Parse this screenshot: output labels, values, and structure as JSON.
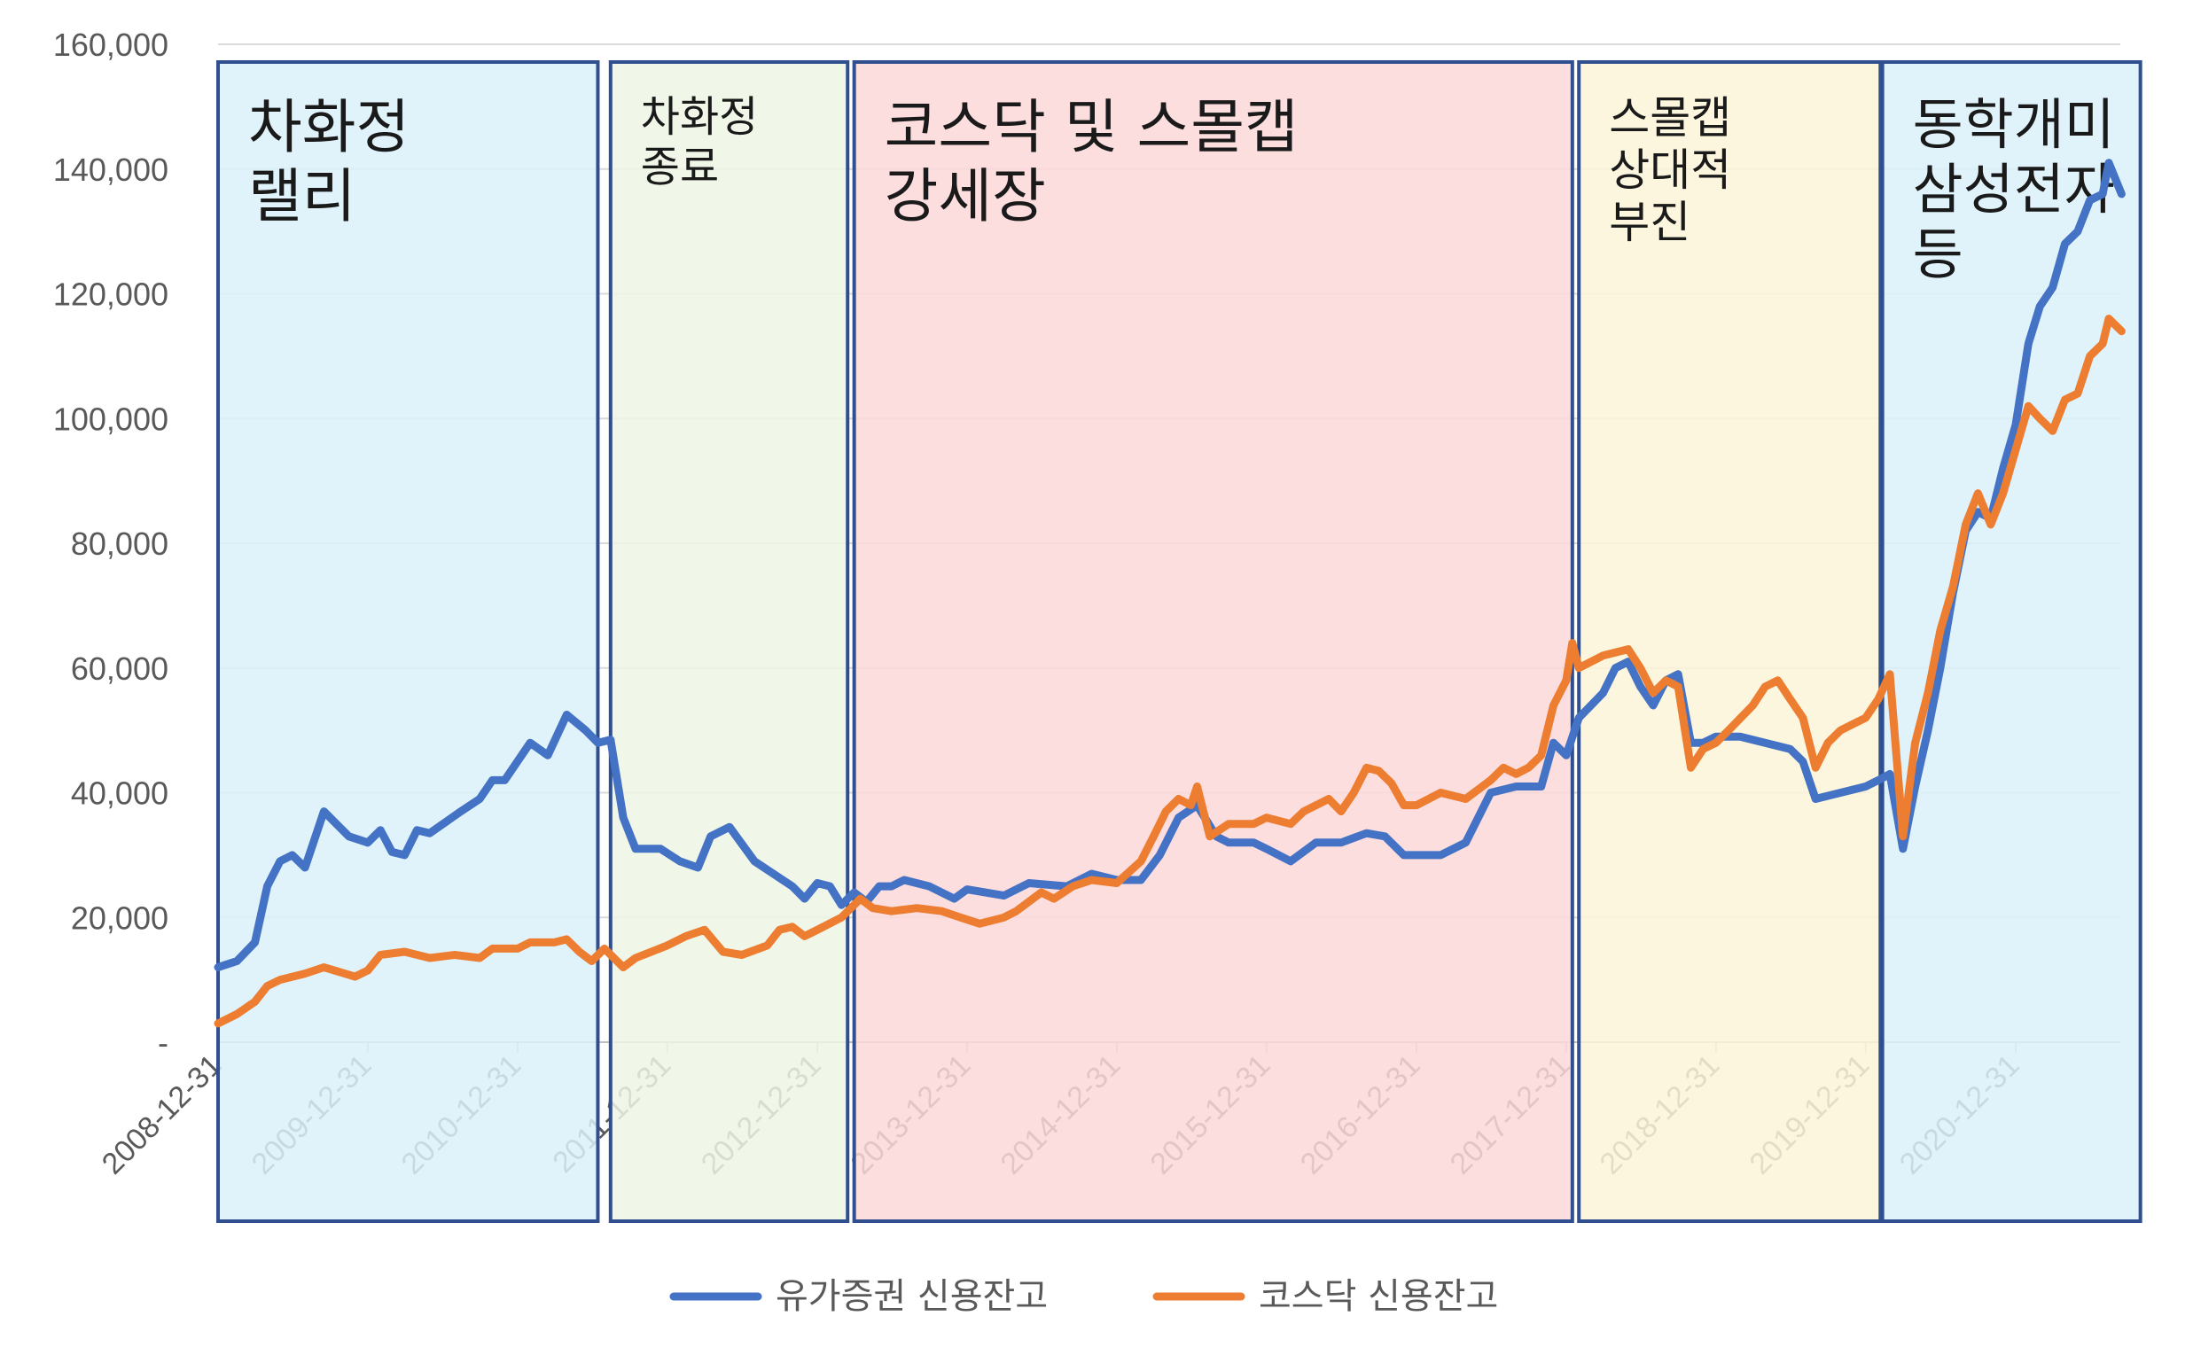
{
  "chart_data": {
    "type": "line",
    "title": "",
    "xlabel": "",
    "ylabel": "",
    "ylim": [
      0,
      160000
    ],
    "yticks": [
      {
        "value": 0,
        "label": "-"
      },
      {
        "value": 20000,
        "label": "20,000"
      },
      {
        "value": 40000,
        "label": "40,000"
      },
      {
        "value": 60000,
        "label": "60,000"
      },
      {
        "value": 80000,
        "label": "80,000"
      },
      {
        "value": 100000,
        "label": "100,000"
      },
      {
        "value": 120000,
        "label": "120,000"
      },
      {
        "value": 140000,
        "label": "140,000"
      },
      {
        "value": 160000,
        "label": "160,000"
      }
    ],
    "xlim": [
      "2008-12-31",
      "2021-09-30"
    ],
    "xticks": [
      "2008-12-31",
      "2009-12-31",
      "2010-12-31",
      "2011-12-31",
      "2012-12-31",
      "2013-12-31",
      "2014-12-31",
      "2015-12-31",
      "2016-12-31",
      "2017-12-31",
      "2018-12-31",
      "2019-12-31",
      "2020-12-31"
    ],
    "grid": true,
    "legend_position": "bottom",
    "series": [
      {
        "name": "유가증권 신용잔고",
        "color": "#4472C4",
        "points": [
          [
            "2008-12-31",
            12000
          ],
          [
            "2009-02-15",
            13000
          ],
          [
            "2009-03-31",
            16000
          ],
          [
            "2009-04-30",
            25000
          ],
          [
            "2009-05-31",
            29000
          ],
          [
            "2009-06-30",
            30000
          ],
          [
            "2009-07-31",
            28000
          ],
          [
            "2009-09-15",
            37000
          ],
          [
            "2009-11-15",
            33000
          ],
          [
            "2009-12-31",
            32000
          ],
          [
            "2010-01-31",
            34000
          ],
          [
            "2010-02-28",
            30500
          ],
          [
            "2010-03-31",
            30000
          ],
          [
            "2010-04-30",
            34000
          ],
          [
            "2010-05-31",
            33500
          ],
          [
            "2010-08-15",
            37000
          ],
          [
            "2010-09-30",
            39000
          ],
          [
            "2010-10-31",
            42000
          ],
          [
            "2010-11-30",
            42000
          ],
          [
            "2011-01-31",
            48000
          ],
          [
            "2011-03-15",
            46000
          ],
          [
            "2011-04-30",
            52500
          ],
          [
            "2011-06-15",
            50000
          ],
          [
            "2011-07-15",
            48000
          ],
          [
            "2011-08-15",
            48500
          ],
          [
            "2011-09-15",
            36000
          ],
          [
            "2011-10-15",
            31000
          ],
          [
            "2011-12-15",
            31000
          ],
          [
            "2012-01-31",
            29000
          ],
          [
            "2012-03-15",
            28000
          ],
          [
            "2012-04-15",
            33000
          ],
          [
            "2012-05-31",
            34500
          ],
          [
            "2012-07-31",
            29000
          ],
          [
            "2012-10-31",
            25000
          ],
          [
            "2012-11-30",
            23000
          ],
          [
            "2012-12-31",
            25500
          ],
          [
            "2013-01-31",
            25000
          ],
          [
            "2013-02-28",
            22000
          ],
          [
            "2013-03-31",
            24000
          ],
          [
            "2013-04-30",
            22500
          ],
          [
            "2013-05-31",
            25000
          ],
          [
            "2013-06-30",
            25000
          ],
          [
            "2013-07-31",
            26000
          ],
          [
            "2013-09-30",
            25000
          ],
          [
            "2013-11-30",
            23000
          ],
          [
            "2013-12-31",
            24500
          ],
          [
            "2014-03-31",
            23500
          ],
          [
            "2014-05-31",
            25500
          ],
          [
            "2014-08-31",
            25000
          ],
          [
            "2014-10-31",
            27000
          ],
          [
            "2014-12-31",
            26000
          ],
          [
            "2015-02-28",
            26000
          ],
          [
            "2015-04-15",
            30000
          ],
          [
            "2015-05-31",
            36000
          ],
          [
            "2015-07-15",
            38000
          ],
          [
            "2015-08-31",
            33000
          ],
          [
            "2015-09-30",
            32000
          ],
          [
            "2015-11-30",
            32000
          ],
          [
            "2015-12-31",
            31000
          ],
          [
            "2016-02-28",
            29000
          ],
          [
            "2016-04-30",
            32000
          ],
          [
            "2016-06-30",
            32000
          ],
          [
            "2016-08-31",
            33500
          ],
          [
            "2016-10-15",
            33000
          ],
          [
            "2016-11-30",
            30000
          ],
          [
            "2016-12-31",
            30000
          ],
          [
            "2017-02-28",
            30000
          ],
          [
            "2017-04-30",
            32000
          ],
          [
            "2017-06-30",
            40000
          ],
          [
            "2017-08-31",
            41000
          ],
          [
            "2017-10-31",
            41000
          ],
          [
            "2017-11-30",
            48000
          ],
          [
            "2017-12-31",
            46000
          ],
          [
            "2018-01-31",
            52000
          ],
          [
            "2018-03-31",
            56000
          ],
          [
            "2018-04-30",
            60000
          ],
          [
            "2018-05-31",
            61000
          ],
          [
            "2018-06-30",
            57000
          ],
          [
            "2018-07-31",
            54000
          ],
          [
            "2018-08-31",
            58000
          ],
          [
            "2018-09-30",
            59000
          ],
          [
            "2018-10-31",
            48000
          ],
          [
            "2018-11-30",
            48000
          ],
          [
            "2018-12-31",
            49000
          ],
          [
            "2019-02-28",
            49000
          ],
          [
            "2019-04-30",
            48000
          ],
          [
            "2019-06-30",
            47000
          ],
          [
            "2019-07-31",
            45000
          ],
          [
            "2019-08-31",
            39000
          ],
          [
            "2019-10-31",
            40000
          ],
          [
            "2019-12-31",
            41000
          ],
          [
            "2020-01-31",
            42000
          ],
          [
            "2020-02-28",
            43000
          ],
          [
            "2020-03-31",
            31000
          ],
          [
            "2020-04-30",
            41000
          ],
          [
            "2020-05-31",
            50000
          ],
          [
            "2020-06-30",
            60000
          ],
          [
            "2020-07-31",
            72000
          ],
          [
            "2020-08-31",
            82000
          ],
          [
            "2020-09-30",
            85000
          ],
          [
            "2020-10-31",
            84000
          ],
          [
            "2020-11-30",
            92000
          ],
          [
            "2020-12-31",
            99000
          ],
          [
            "2021-01-31",
            112000
          ],
          [
            "2021-02-28",
            118000
          ],
          [
            "2021-03-31",
            121000
          ],
          [
            "2021-04-30",
            128000
          ],
          [
            "2021-05-31",
            130000
          ],
          [
            "2021-06-30",
            135000
          ],
          [
            "2021-07-31",
            136000
          ],
          [
            "2021-08-15",
            141000
          ],
          [
            "2021-09-15",
            136000
          ]
        ]
      },
      {
        "name": "코스닥 신용잔고",
        "color": "#ED7D31",
        "points": [
          [
            "2008-12-31",
            3000
          ],
          [
            "2009-02-15",
            4500
          ],
          [
            "2009-03-31",
            6500
          ],
          [
            "2009-04-30",
            9000
          ],
          [
            "2009-05-31",
            10000
          ],
          [
            "2009-07-31",
            11000
          ],
          [
            "2009-09-15",
            12000
          ],
          [
            "2009-11-30",
            10500
          ],
          [
            "2009-12-31",
            11500
          ],
          [
            "2010-01-31",
            14000
          ],
          [
            "2010-03-31",
            14500
          ],
          [
            "2010-05-31",
            13500
          ],
          [
            "2010-07-31",
            14000
          ],
          [
            "2010-09-30",
            13500
          ],
          [
            "2010-10-31",
            15000
          ],
          [
            "2010-12-31",
            15000
          ],
          [
            "2011-01-31",
            16000
          ],
          [
            "2011-03-31",
            16000
          ],
          [
            "2011-04-30",
            16500
          ],
          [
            "2011-05-31",
            14500
          ],
          [
            "2011-06-30",
            13000
          ],
          [
            "2011-07-31",
            15000
          ],
          [
            "2011-09-15",
            12000
          ],
          [
            "2011-10-15",
            13500
          ],
          [
            "2011-12-31",
            15500
          ],
          [
            "2012-02-15",
            17000
          ],
          [
            "2012-03-31",
            18000
          ],
          [
            "2012-05-15",
            14500
          ],
          [
            "2012-06-30",
            14000
          ],
          [
            "2012-08-31",
            15500
          ],
          [
            "2012-09-30",
            18000
          ],
          [
            "2012-10-31",
            18500
          ],
          [
            "2012-11-30",
            17000
          ],
          [
            "2012-12-31",
            18000
          ],
          [
            "2013-02-28",
            20000
          ],
          [
            "2013-04-15",
            23000
          ],
          [
            "2013-05-15",
            21500
          ],
          [
            "2013-06-30",
            21000
          ],
          [
            "2013-08-31",
            21500
          ],
          [
            "2013-10-31",
            21000
          ],
          [
            "2013-12-15",
            20000
          ],
          [
            "2014-01-31",
            19000
          ],
          [
            "2014-03-31",
            20000
          ],
          [
            "2014-04-30",
            21000
          ],
          [
            "2014-06-30",
            24000
          ],
          [
            "2014-07-31",
            23000
          ],
          [
            "2014-09-15",
            25000
          ],
          [
            "2014-10-31",
            26000
          ],
          [
            "2014-12-31",
            25500
          ],
          [
            "2015-02-28",
            29000
          ],
          [
            "2015-03-31",
            33000
          ],
          [
            "2015-04-30",
            37000
          ],
          [
            "2015-05-31",
            39000
          ],
          [
            "2015-06-30",
            38000
          ],
          [
            "2015-07-15",
            41000
          ],
          [
            "2015-08-15",
            33000
          ],
          [
            "2015-09-30",
            35000
          ],
          [
            "2015-11-30",
            35000
          ],
          [
            "2015-12-31",
            36000
          ],
          [
            "2016-02-28",
            35000
          ],
          [
            "2016-03-31",
            37000
          ],
          [
            "2016-05-31",
            39000
          ],
          [
            "2016-06-30",
            37000
          ],
          [
            "2016-07-31",
            40000
          ],
          [
            "2016-08-31",
            44000
          ],
          [
            "2016-09-30",
            43500
          ],
          [
            "2016-10-31",
            41500
          ],
          [
            "2016-11-30",
            38000
          ],
          [
            "2016-12-31",
            38000
          ],
          [
            "2017-02-28",
            40000
          ],
          [
            "2017-04-30",
            39000
          ],
          [
            "2017-06-30",
            42000
          ],
          [
            "2017-07-31",
            44000
          ],
          [
            "2017-08-31",
            43000
          ],
          [
            "2017-09-30",
            44000
          ],
          [
            "2017-10-31",
            46000
          ],
          [
            "2017-11-30",
            54000
          ],
          [
            "2017-12-31",
            58000
          ],
          [
            "2018-01-15",
            64000
          ],
          [
            "2018-01-31",
            60000
          ],
          [
            "2018-03-31",
            62000
          ],
          [
            "2018-05-31",
            63000
          ],
          [
            "2018-06-30",
            60000
          ],
          [
            "2018-07-31",
            56000
          ],
          [
            "2018-08-31",
            58000
          ],
          [
            "2018-09-30",
            57000
          ],
          [
            "2018-10-31",
            44000
          ],
          [
            "2018-11-30",
            47000
          ],
          [
            "2018-12-31",
            48000
          ],
          [
            "2019-01-31",
            50000
          ],
          [
            "2019-03-31",
            54000
          ],
          [
            "2019-04-30",
            57000
          ],
          [
            "2019-05-31",
            58000
          ],
          [
            "2019-06-30",
            55000
          ],
          [
            "2019-07-31",
            52000
          ],
          [
            "2019-08-31",
            44000
          ],
          [
            "2019-09-30",
            48000
          ],
          [
            "2019-10-31",
            50000
          ],
          [
            "2019-11-30",
            51000
          ],
          [
            "2019-12-31",
            52000
          ],
          [
            "2020-01-31",
            55000
          ],
          [
            "2020-02-28",
            59000
          ],
          [
            "2020-03-31",
            33000
          ],
          [
            "2020-04-30",
            48000
          ],
          [
            "2020-05-31",
            56000
          ],
          [
            "2020-06-30",
            66000
          ],
          [
            "2020-07-31",
            73000
          ],
          [
            "2020-08-31",
            83000
          ],
          [
            "2020-09-30",
            88000
          ],
          [
            "2020-10-31",
            83000
          ],
          [
            "2020-11-30",
            88000
          ],
          [
            "2020-12-31",
            95000
          ],
          [
            "2021-01-31",
            102000
          ],
          [
            "2021-02-28",
            100000
          ],
          [
            "2021-03-31",
            98000
          ],
          [
            "2021-04-30",
            103000
          ],
          [
            "2021-05-31",
            104000
          ],
          [
            "2021-06-30",
            110000
          ],
          [
            "2021-07-31",
            112000
          ],
          [
            "2021-08-15",
            116000
          ],
          [
            "2021-09-15",
            114000
          ]
        ]
      }
    ],
    "annotations": [
      {
        "id": "rally",
        "lines": [
          "차화정",
          "랠리"
        ],
        "start": "2008-12-31",
        "end": "2011-07-15",
        "fill": "#DAF1FA"
      },
      {
        "id": "end",
        "lines": [
          "차화정",
          "종료"
        ],
        "start": "2011-08-15",
        "end": "2013-03-15",
        "fill": "#EDF6E4"
      },
      {
        "id": "kosdaq",
        "lines": [
          "코스닥 및 스몰캡",
          "강세장"
        ],
        "start": "2013-03-31",
        "end": "2018-01-15",
        "fill": "#FDD8D9"
      },
      {
        "id": "smallcap",
        "lines": [
          "스몰캡",
          "상대적",
          "부진"
        ],
        "start": "2018-01-31",
        "end": "2020-02-05",
        "fill": "#FDF4D8"
      },
      {
        "id": "samsung",
        "lines": [
          "동학개미",
          "삼성전자",
          "등"
        ],
        "start": "2020-02-10",
        "end": "2021-10-31",
        "fill": "#DAF1FA"
      }
    ]
  }
}
